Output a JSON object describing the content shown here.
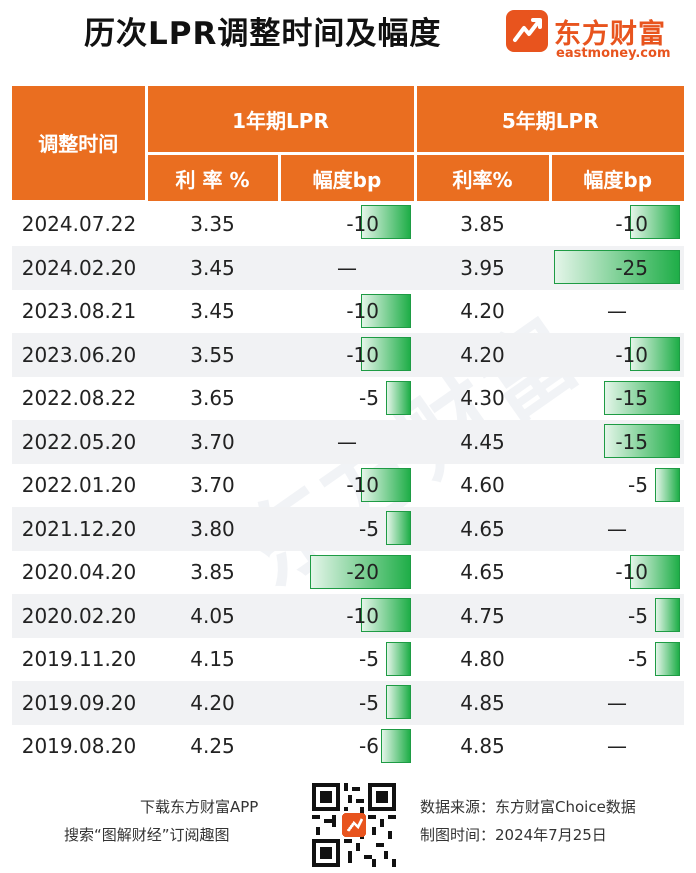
{
  "title": "历次LPR调整时间及幅度",
  "logo": {
    "cn": "东方财富",
    "en": "eastmoney.com",
    "icon": "eastmoney-logo-icon"
  },
  "watermark": "东方财富",
  "colors": {
    "header_bg": "#ea6e20",
    "bar_green": "#1fae48",
    "row_alt": "#f1f2f4"
  },
  "chart_data": {
    "type": "table",
    "headers": {
      "date": "调整时间",
      "group_1y": "1年期LPR",
      "group_5y": "5年期LPR",
      "rate_1y": "利 率 %",
      "change_1y": "幅度bp",
      "rate_5y": "利率%",
      "change_5y": "幅度bp"
    },
    "rows": [
      {
        "date": "2024.07.22",
        "rate_1y": "3.35",
        "change_1y": "-10",
        "chg1": -10,
        "rate_5y": "3.85",
        "change_5y": "-10",
        "chg5": -10
      },
      {
        "date": "2024.02.20",
        "rate_1y": "3.45",
        "change_1y": "—",
        "chg1": 0,
        "rate_5y": "3.95",
        "change_5y": "-25",
        "chg5": -25
      },
      {
        "date": "2023.08.21",
        "rate_1y": "3.45",
        "change_1y": "-10",
        "chg1": -10,
        "rate_5y": "4.20",
        "change_5y": "—",
        "chg5": 0
      },
      {
        "date": "2023.06.20",
        "rate_1y": "3.55",
        "change_1y": "-10",
        "chg1": -10,
        "rate_5y": "4.20",
        "change_5y": "-10",
        "chg5": -10
      },
      {
        "date": "2022.08.22",
        "rate_1y": "3.65",
        "change_1y": "-5",
        "chg1": -5,
        "rate_5y": "4.30",
        "change_5y": "-15",
        "chg5": -15
      },
      {
        "date": "2022.05.20",
        "rate_1y": "3.70",
        "change_1y": "—",
        "chg1": 0,
        "rate_5y": "4.45",
        "change_5y": "-15",
        "chg5": -15
      },
      {
        "date": "2022.01.20",
        "rate_1y": "3.70",
        "change_1y": "-10",
        "chg1": -10,
        "rate_5y": "4.60",
        "change_5y": "-5",
        "chg5": -5
      },
      {
        "date": "2021.12.20",
        "rate_1y": "3.80",
        "change_1y": "-5",
        "chg1": -5,
        "rate_5y": "4.65",
        "change_5y": "—",
        "chg5": 0
      },
      {
        "date": "2020.04.20",
        "rate_1y": "3.85",
        "change_1y": "-20",
        "chg1": -20,
        "rate_5y": "4.65",
        "change_5y": "-10",
        "chg5": -10
      },
      {
        "date": "2020.02.20",
        "rate_1y": "4.05",
        "change_1y": "-10",
        "chg1": -10,
        "rate_5y": "4.75",
        "change_5y": "-5",
        "chg5": -5
      },
      {
        "date": "2019.11.20",
        "rate_1y": "4.15",
        "change_1y": "-5",
        "chg1": -5,
        "rate_5y": "4.80",
        "change_5y": "-5",
        "chg5": -5
      },
      {
        "date": "2019.09.20",
        "rate_1y": "4.20",
        "change_1y": "-5",
        "chg1": -5,
        "rate_5y": "4.85",
        "change_5y": "—",
        "chg5": 0
      },
      {
        "date": "2019.08.20",
        "rate_1y": "4.25",
        "change_1y": "-6",
        "chg1": -6,
        "rate_5y": "4.85",
        "change_5y": "—",
        "chg5": 0
      }
    ]
  },
  "footer": {
    "left_line1": "下载东方财富APP",
    "left_line2": "搜索“图解财经”订阅趣图",
    "right_line1": "数据来源：东方财富Choice数据",
    "right_line2": "制图时间：2024年7月25日",
    "qr_icon": "qr-code-icon"
  }
}
